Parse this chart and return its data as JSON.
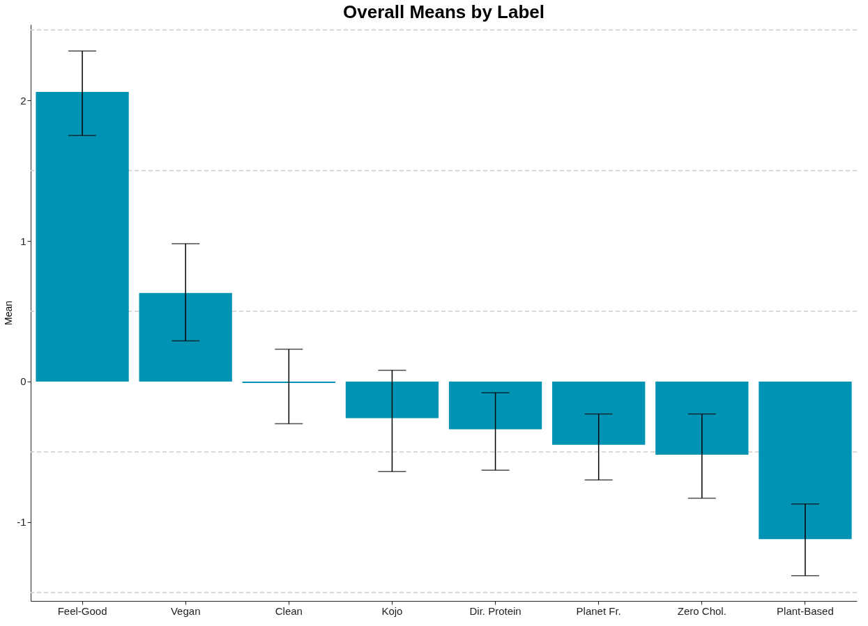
{
  "chart_data": {
    "type": "bar",
    "title": "Overall Means by Label",
    "ylabel": "Mean",
    "categories": [
      "Feel-Good",
      "Vegan",
      "Clean",
      "Kojo",
      "Dir. Protein",
      "Planet Fr.",
      "Zero Chol.",
      "Plant-Based"
    ],
    "values": [
      2.06,
      0.63,
      -0.01,
      -0.26,
      -0.34,
      -0.45,
      -0.52,
      -1.12
    ],
    "errors": [
      [
        1.75,
        2.35
      ],
      [
        0.29,
        0.98
      ],
      [
        -0.3,
        0.23
      ],
      [
        -0.64,
        0.08
      ],
      [
        -0.63,
        -0.08
      ],
      [
        -0.7,
        -0.23
      ],
      [
        -0.83,
        -0.23
      ],
      [
        -1.38,
        -0.87
      ]
    ],
    "color": "#0093b3",
    "ylim": [
      -1.56,
      2.54
    ],
    "yticks": [
      {
        "value": -1.5,
        "label": null
      },
      -1,
      {
        "value": -0.5,
        "label": null
      },
      0,
      {
        "value": 0.5,
        "label": null
      },
      1,
      {
        "value": 1.5,
        "label": null
      },
      2,
      {
        "value": 2.5,
        "label": null
      }
    ],
    "grid": "y"
  }
}
